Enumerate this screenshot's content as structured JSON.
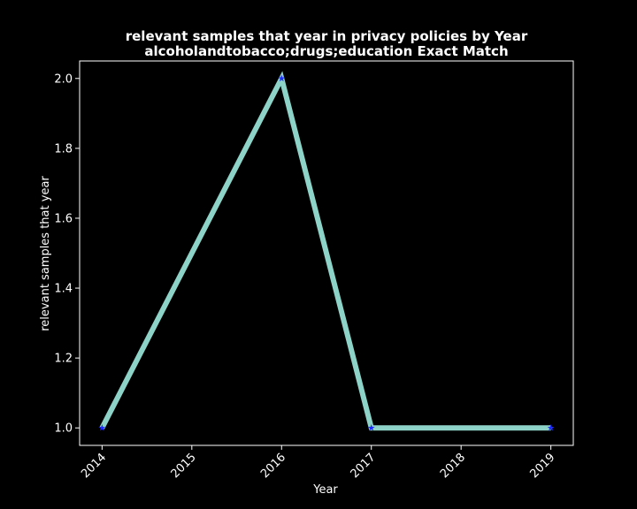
{
  "chart_data": {
    "type": "line",
    "title": "relevant samples that year in privacy policies by Year",
    "subtitle": "alcoholandtobacco;drugs;education Exact Match",
    "xlabel": "Year",
    "ylabel": "relevant samples that year",
    "x": [
      2014,
      2016,
      2017,
      2019
    ],
    "xticks": [
      "2014",
      "2015",
      "2016",
      "2017",
      "2018",
      "2019"
    ],
    "xlim": [
      2013.75,
      2019.25
    ],
    "yticks": [
      "1.0",
      "1.2",
      "1.4",
      "1.6",
      "1.8",
      "2.0"
    ],
    "ylim": [
      0.95,
      2.05
    ],
    "grid": false,
    "series": [
      {
        "values": [
          1,
          2,
          1,
          1
        ]
      }
    ],
    "colors": {
      "background": "#000000",
      "line": "#8dd3c7",
      "marker": "#1f2cff",
      "text": "#ffffff"
    }
  }
}
